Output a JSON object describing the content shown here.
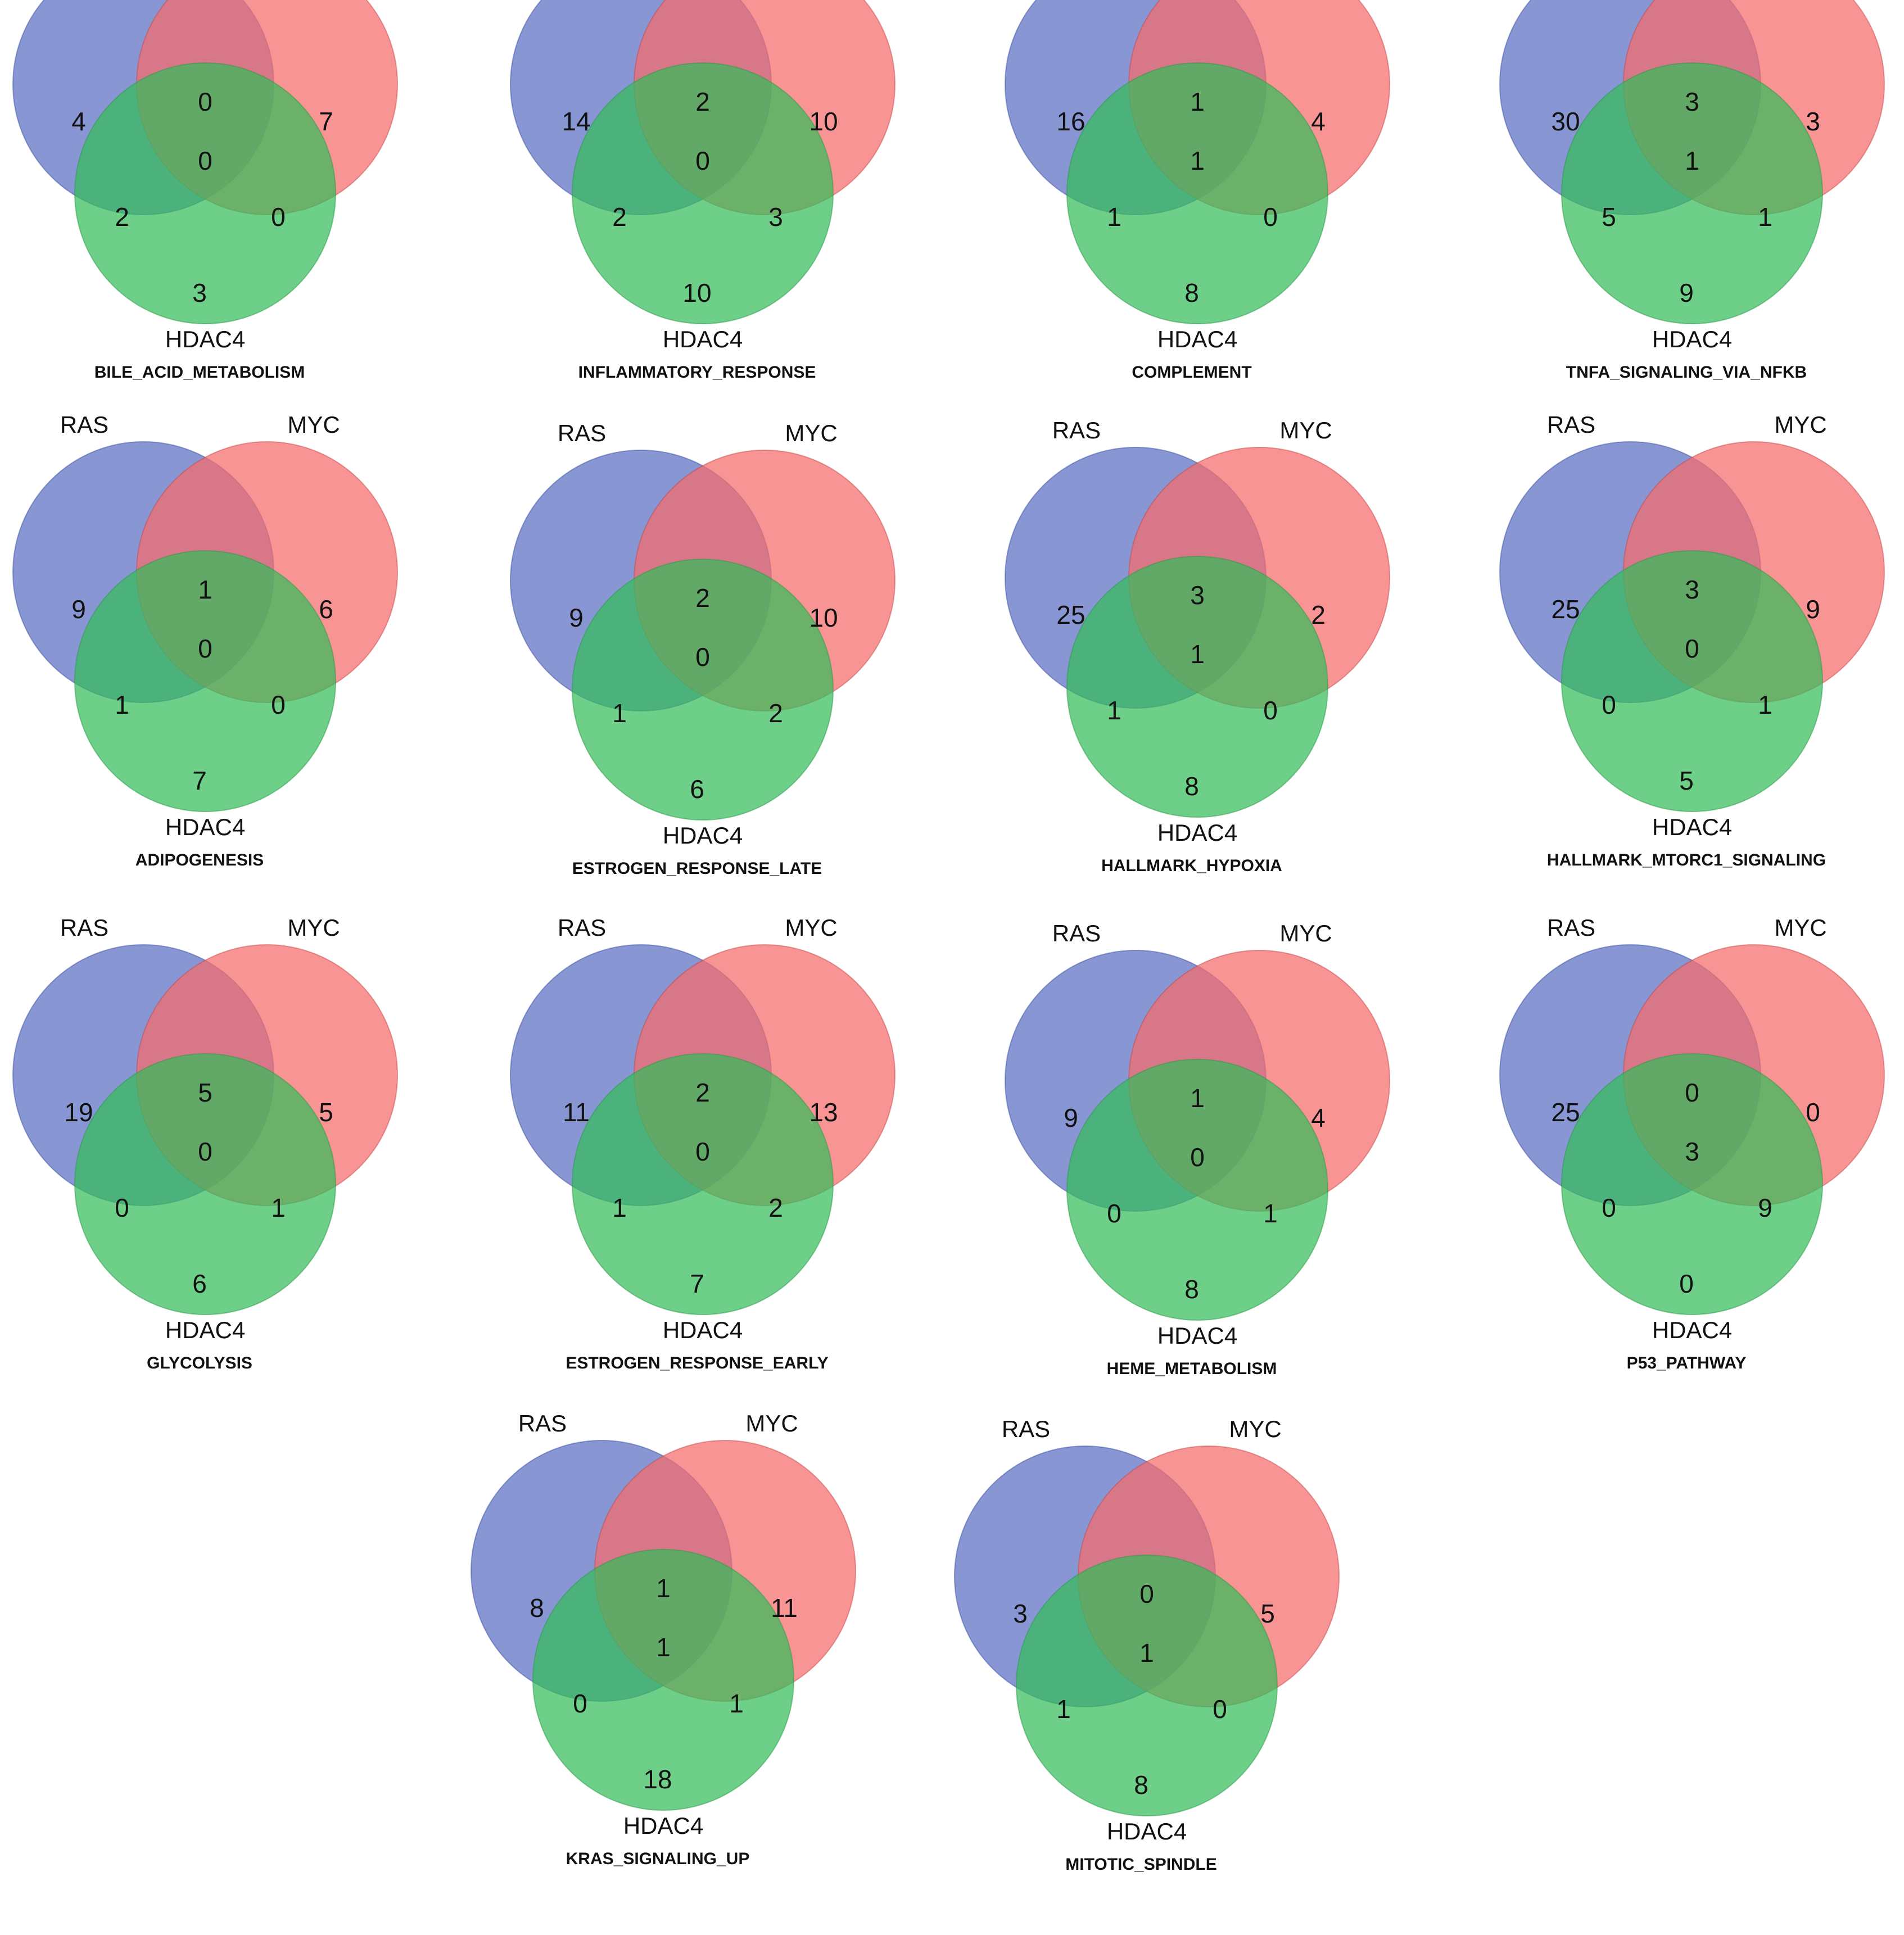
{
  "colors": {
    "ras": "#5a6fc4",
    "myc": "#f66b6b",
    "hdac4": "#34bc5a"
  },
  "labels": {
    "ras": "RAS",
    "myc": "MYC",
    "hdac4": "HDAC4"
  },
  "diagrams": [
    {
      "title": "BILE_ACID_METABOLISM",
      "counts": {
        "ras_only": "4",
        "myc_only": "7",
        "hdac4_only": "3",
        "ras_myc": "0",
        "ras_hdac4": "2",
        "myc_hdac4": "0",
        "all": "0"
      }
    },
    {
      "title": "INFLAMMATORY_RESPONSE",
      "counts": {
        "ras_only": "14",
        "myc_only": "10",
        "hdac4_only": "10",
        "ras_myc": "2",
        "ras_hdac4": "2",
        "myc_hdac4": "3",
        "all": "0"
      }
    },
    {
      "title": "COMPLEMENT",
      "counts": {
        "ras_only": "16",
        "myc_only": "4",
        "hdac4_only": "8",
        "ras_myc": "1",
        "ras_hdac4": "1",
        "myc_hdac4": "0",
        "all": "1"
      }
    },
    {
      "title": "TNFA_SIGNALING_VIA_NFKB",
      "counts": {
        "ras_only": "30",
        "myc_only": "3",
        "hdac4_only": "9",
        "ras_myc": "3",
        "ras_hdac4": "5",
        "myc_hdac4": "1",
        "all": "1"
      }
    },
    {
      "title": "ADIPOGENESIS",
      "counts": {
        "ras_only": "9",
        "myc_only": "6",
        "hdac4_only": "7",
        "ras_myc": "1",
        "ras_hdac4": "1",
        "myc_hdac4": "0",
        "all": "0"
      }
    },
    {
      "title": "ESTROGEN_RESPONSE_LATE",
      "counts": {
        "ras_only": "9",
        "myc_only": "10",
        "hdac4_only": "6",
        "ras_myc": "2",
        "ras_hdac4": "1",
        "myc_hdac4": "2",
        "all": "0"
      }
    },
    {
      "title": "HALLMARK_HYPOXIA",
      "counts": {
        "ras_only": "25",
        "myc_only": "2",
        "hdac4_only": "8",
        "ras_myc": "3",
        "ras_hdac4": "1",
        "myc_hdac4": "0",
        "all": "1"
      }
    },
    {
      "title": "HALLMARK_MTORC1_SIGNALING",
      "counts": {
        "ras_only": "25",
        "myc_only": "9",
        "hdac4_only": "5",
        "ras_myc": "3",
        "ras_hdac4": "0",
        "myc_hdac4": "1",
        "all": "0"
      }
    },
    {
      "title": "GLYCOLYSIS",
      "counts": {
        "ras_only": "19",
        "myc_only": "5",
        "hdac4_only": "6",
        "ras_myc": "5",
        "ras_hdac4": "0",
        "myc_hdac4": "1",
        "all": "0"
      }
    },
    {
      "title": "ESTROGEN_RESPONSE_EARLY",
      "counts": {
        "ras_only": "11",
        "myc_only": "13",
        "hdac4_only": "7",
        "ras_myc": "2",
        "ras_hdac4": "1",
        "myc_hdac4": "2",
        "all": "0"
      }
    },
    {
      "title": "HEME_METABOLISM",
      "counts": {
        "ras_only": "9",
        "myc_only": "4",
        "hdac4_only": "8",
        "ras_myc": "1",
        "ras_hdac4": "0",
        "myc_hdac4": "1",
        "all": "0"
      }
    },
    {
      "title": "P53_PATHWAY",
      "counts": {
        "ras_only": "25",
        "myc_only": "0",
        "hdac4_only": "0",
        "ras_myc": "0",
        "ras_hdac4": "0",
        "myc_hdac4": "9",
        "all": "3"
      }
    },
    {
      "title": "KRAS_SIGNALING_UP",
      "counts": {
        "ras_only": "8",
        "myc_only": "11",
        "hdac4_only": "18",
        "ras_myc": "1",
        "ras_hdac4": "0",
        "myc_hdac4": "1",
        "all": "1"
      }
    },
    {
      "title": "MITOTIC_SPINDLE",
      "counts": {
        "ras_only": "3",
        "myc_only": "5",
        "hdac4_only": "8",
        "ras_myc": "0",
        "ras_hdac4": "1",
        "myc_hdac4": "0",
        "all": "1"
      }
    }
  ]
}
